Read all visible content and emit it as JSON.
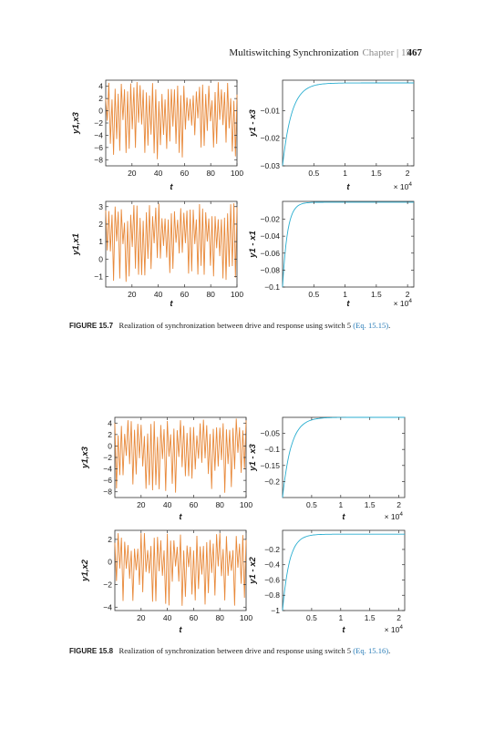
{
  "header": {
    "title": "Multiswitching Synchronization",
    "chapter": "Chapter | 15",
    "page_number": "467"
  },
  "figures": [
    {
      "caption_label": "FIGURE 15.7",
      "caption_text": "Realization of synchronization between drive and response using switch 5",
      "caption_ref": "(Eq. 15.15)",
      "caption_end": "."
    },
    {
      "caption_label": "FIGURE 15.8",
      "caption_text": "Realization of synchronization between drive and response using switch 5",
      "caption_ref": "(Eq. 15.16)",
      "caption_end": "."
    }
  ],
  "chart_data": [
    {
      "id": "fig7-top-left",
      "type": "line",
      "xlabel": "t",
      "ylabel": "y1,x3",
      "xlim": [
        0,
        100
      ],
      "ylim": [
        -9,
        5
      ],
      "xticks": [
        20,
        40,
        60,
        80,
        100
      ],
      "yticks": [
        4,
        2,
        0,
        -2,
        -4,
        -6,
        -8
      ],
      "xtick_labels": [
        "20",
        "40",
        "60",
        "80",
        "100"
      ],
      "ytick_labels": [
        "4",
        "2",
        "0",
        "−2",
        "−4",
        "−6",
        "−8"
      ],
      "series": [
        {
          "color": "#e8893a",
          "style": "oscillation",
          "min": -8.2,
          "max": 4.8,
          "cycles": 42
        }
      ]
    },
    {
      "id": "fig7-top-right",
      "type": "line",
      "xlabel": "t",
      "ylabel": "y1 - x3",
      "x_multiplier": "× 10",
      "x_exponent": "4",
      "xlim": [
        0,
        2.1
      ],
      "ylim": [
        -0.03,
        0.001
      ],
      "xticks": [
        0.5,
        1,
        1.5,
        2
      ],
      "yticks": [
        -0.01,
        -0.02,
        -0.03
      ],
      "xtick_labels": [
        "0.5",
        "1",
        "1.5",
        "2"
      ],
      "ytick_labels": [
        "−0.01",
        "−0.02",
        "−0.03"
      ],
      "series": [
        {
          "color": "#2aaed0",
          "style": "decay",
          "start": -0.03,
          "end": 0,
          "rate": 3.2
        }
      ]
    },
    {
      "id": "fig7-bottom-left",
      "type": "line",
      "xlabel": "t",
      "ylabel": "y1,x1",
      "xlim": [
        0,
        100
      ],
      "ylim": [
        -1.6,
        3.3
      ],
      "xticks": [
        20,
        40,
        60,
        80,
        100
      ],
      "yticks": [
        3,
        2,
        1,
        0,
        -1
      ],
      "xtick_labels": [
        "20",
        "40",
        "60",
        "80",
        "100"
      ],
      "ytick_labels": [
        "3",
        "2",
        "1",
        "0",
        "−1"
      ],
      "series": [
        {
          "color": "#e8893a",
          "style": "oscillation",
          "min": -1.4,
          "max": 3.2,
          "cycles": 42
        }
      ]
    },
    {
      "id": "fig7-bottom-right",
      "type": "line",
      "xlabel": "t",
      "ylabel": "y1 - x1",
      "x_multiplier": "× 10",
      "x_exponent": "4",
      "xlim": [
        0,
        2.1
      ],
      "ylim": [
        -0.1,
        0.001
      ],
      "xticks": [
        0.5,
        1,
        1.5,
        2
      ],
      "yticks": [
        -0.02,
        -0.04,
        -0.06,
        -0.08,
        -0.1
      ],
      "xtick_labels": [
        "0.5",
        "1",
        "1.5",
        "2"
      ],
      "ytick_labels": [
        "−0.02",
        "−0.04",
        "−0.06",
        "−0.08",
        "−0.1"
      ],
      "series": [
        {
          "color": "#2aaed0",
          "style": "decay",
          "start": -0.1,
          "end": 0,
          "rate": 6
        }
      ]
    },
    {
      "id": "fig8-top-left",
      "type": "line",
      "xlabel": "t",
      "ylabel": "y1,x3",
      "xlim": [
        0,
        100
      ],
      "ylim": [
        -9,
        5
      ],
      "xticks": [
        20,
        40,
        60,
        80,
        100
      ],
      "yticks": [
        4,
        2,
        0,
        -2,
        -4,
        -6,
        -8
      ],
      "xtick_labels": [
        "20",
        "40",
        "60",
        "80",
        "100"
      ],
      "ytick_labels": [
        "4",
        "2",
        "0",
        "−2",
        "−4",
        "−6",
        "−8"
      ],
      "series": [
        {
          "color": "#e8893a",
          "style": "oscillation",
          "min": -8.4,
          "max": 4.8,
          "cycles": 40
        }
      ]
    },
    {
      "id": "fig8-top-right",
      "type": "line",
      "xlabel": "t",
      "ylabel": "y1 - x3",
      "x_multiplier": "× 10",
      "x_exponent": "4",
      "xlim": [
        0,
        2.1
      ],
      "ylim": [
        -0.25,
        0.0
      ],
      "xticks": [
        0.5,
        1,
        1.5,
        2
      ],
      "yticks": [
        -0.05,
        -0.1,
        -0.15,
        -0.2
      ],
      "xtick_labels": [
        "0.5",
        "1",
        "1.5",
        "2"
      ],
      "ytick_labels": [
        "−0.05",
        "−0.1",
        "−0.15",
        "−0.2"
      ],
      "series": [
        {
          "color": "#2aaed0",
          "style": "decay",
          "start": -0.25,
          "end": 0,
          "rate": 3.2
        }
      ]
    },
    {
      "id": "fig8-bottom-left",
      "type": "line",
      "xlabel": "t",
      "ylabel": "y1,x2",
      "xlim": [
        0,
        100
      ],
      "ylim": [
        -4.3,
        2.8
      ],
      "xticks": [
        20,
        40,
        60,
        80,
        100
      ],
      "yticks": [
        2,
        0,
        -2,
        -4
      ],
      "xtick_labels": [
        "20",
        "40",
        "60",
        "80",
        "100"
      ],
      "ytick_labels": [
        "2",
        "0",
        "−2",
        "−4"
      ],
      "series": [
        {
          "color": "#e8893a",
          "style": "oscillation",
          "min": -3.9,
          "max": 2.6,
          "cycles": 40
        }
      ]
    },
    {
      "id": "fig8-bottom-right",
      "type": "line",
      "xlabel": "t",
      "ylabel": "y1 - x2",
      "x_multiplier": "× 10",
      "x_exponent": "4",
      "xlim": [
        0,
        2.1
      ],
      "ylim": [
        -1,
        0.05
      ],
      "xticks": [
        0.5,
        1,
        1.5,
        2
      ],
      "yticks": [
        -0.2,
        -0.4,
        -0.6,
        -0.8,
        -1
      ],
      "xtick_labels": [
        "0.5",
        "1",
        "1.5",
        "2"
      ],
      "ytick_labels": [
        "−0.2",
        "−0.4",
        "−0.6",
        "−0.8",
        "−1"
      ],
      "series": [
        {
          "color": "#2aaed0",
          "style": "decay",
          "start": -1,
          "end": 0,
          "rate": 4
        }
      ]
    }
  ]
}
